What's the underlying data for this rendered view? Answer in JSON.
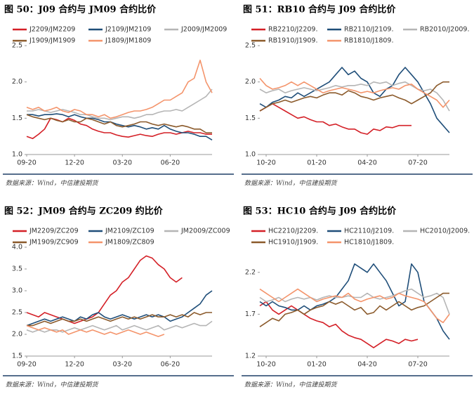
{
  "chart_data": [
    {
      "type": "line",
      "title": "图 50：J09 合约与 JM09 合约比价",
      "source": "数据来源：Wind，中信建投期货",
      "xlim": [
        0,
        31
      ],
      "xticks": [
        {
          "value": 0,
          "label": "09-20"
        },
        {
          "value": 8,
          "label": "12-20"
        },
        {
          "value": 16,
          "label": "03-20"
        },
        {
          "value": 24,
          "label": "06-20"
        }
      ],
      "ylim": [
        1,
        2.5
      ],
      "yticks": [
        {
          "value": 1,
          "label": "1.0"
        },
        1.5,
        {
          "value": 2,
          "label": "2.0"
        },
        2.5
      ],
      "series": [
        {
          "name": "J2209/JM2209",
          "color": "#d42027",
          "values": [
            1.25,
            1.22,
            1.28,
            1.35,
            1.5,
            1.48,
            1.45,
            1.5,
            1.47,
            1.42,
            1.4,
            1.35,
            1.32,
            1.3,
            1.3,
            1.27,
            1.25,
            1.24,
            1.26,
            1.28,
            1.26,
            1.25,
            1.28,
            1.3,
            1.3,
            1.28,
            1.3,
            1.32,
            1.3,
            1.3,
            1.28,
            1.28
          ]
        },
        {
          "name": "J2109/JM2109",
          "color": "#1f4e79",
          "values": [
            1.55,
            1.55,
            1.53,
            1.55,
            1.55,
            1.56,
            1.55,
            1.52,
            1.55,
            1.52,
            1.5,
            1.5,
            1.48,
            1.45,
            1.45,
            1.42,
            1.4,
            1.38,
            1.4,
            1.38,
            1.35,
            1.37,
            1.35,
            1.4,
            1.35,
            1.32,
            1.3,
            1.3,
            1.28,
            1.25,
            1.25,
            1.2
          ]
        },
        {
          "name": "J2009/JM2009",
          "color": "#b5b5b5",
          "values": [
            1.6,
            1.6,
            1.62,
            1.6,
            1.58,
            1.6,
            1.62,
            1.6,
            1.58,
            1.55,
            1.55,
            1.52,
            1.5,
            1.5,
            1.48,
            1.5,
            1.52,
            1.52,
            1.5,
            1.52,
            1.55,
            1.55,
            1.58,
            1.6,
            1.6,
            1.62,
            1.6,
            1.65,
            1.7,
            1.75,
            1.8,
            1.9
          ]
        },
        {
          "name": "J1909/JM1909",
          "color": "#8b5a2b",
          "values": [
            1.55,
            1.52,
            1.5,
            1.48,
            1.5,
            1.47,
            1.45,
            1.48,
            1.45,
            1.45,
            1.5,
            1.48,
            1.45,
            1.42,
            1.45,
            1.4,
            1.38,
            1.4,
            1.42,
            1.45,
            1.45,
            1.42,
            1.4,
            1.42,
            1.4,
            1.38,
            1.4,
            1.38,
            1.35,
            1.35,
            1.3,
            1.3
          ]
        },
        {
          "name": "J1809/JM1809",
          "color": "#f4946b",
          "values": [
            1.65,
            1.62,
            1.65,
            1.6,
            1.62,
            1.65,
            1.6,
            1.58,
            1.62,
            1.6,
            1.55,
            1.55,
            1.52,
            1.55,
            1.5,
            1.52,
            1.55,
            1.58,
            1.6,
            1.6,
            1.62,
            1.65,
            1.7,
            1.75,
            1.75,
            1.8,
            1.85,
            2.0,
            2.05,
            2.3,
            2.0,
            1.85
          ]
        }
      ]
    },
    {
      "type": "line",
      "title": "图 51：RB10 合约与 J09 合约比价",
      "source": "数据来源：Wind，中信建投期货",
      "xlim": [
        0,
        30
      ],
      "xticks": [
        {
          "value": 1,
          "label": "10-20"
        },
        {
          "value": 9,
          "label": "01-20"
        },
        {
          "value": 17,
          "label": "04-20"
        },
        {
          "value": 25,
          "label": "07-20"
        }
      ],
      "ylim": [
        1,
        2.5
      ],
      "yticks": [
        {
          "value": 1,
          "label": "1.0"
        },
        1.5,
        {
          "value": 2,
          "label": "2.0"
        },
        2.5
      ],
      "series": [
        {
          "name": "RB2210/J2209.",
          "color": "#d42027",
          "values": [
            1.6,
            1.65,
            1.7,
            1.65,
            1.6,
            1.55,
            1.5,
            1.52,
            1.48,
            1.45,
            1.45,
            1.4,
            1.42,
            1.38,
            1.35,
            1.35,
            1.3,
            1.28,
            1.35,
            1.33,
            1.38,
            1.37,
            1.4,
            1.4,
            1.4,
            null,
            null,
            null,
            null,
            null,
            null
          ]
        },
        {
          "name": "RB2110/J2109.",
          "color": "#1f4e79",
          "values": [
            1.7,
            1.65,
            1.72,
            1.75,
            1.8,
            1.78,
            1.85,
            1.8,
            1.85,
            1.9,
            1.95,
            2.0,
            2.1,
            2.2,
            2.1,
            2.15,
            2.05,
            2.0,
            1.85,
            1.8,
            1.9,
            1.95,
            2.1,
            2.2,
            2.1,
            2.0,
            1.85,
            1.7,
            1.5,
            1.4,
            1.3
          ]
        },
        {
          "name": "RB2010/J2009.",
          "color": "#b5b5b5",
          "values": [
            1.9,
            1.85,
            1.88,
            1.9,
            1.85,
            1.88,
            1.9,
            1.92,
            1.9,
            1.88,
            1.9,
            1.92,
            1.95,
            1.93,
            1.95,
            1.95,
            1.97,
            1.95,
            2.0,
            1.98,
            2.0,
            1.95,
            1.98,
            2.0,
            1.95,
            1.9,
            1.88,
            1.9,
            1.85,
            1.75,
            1.6
          ]
        },
        {
          "name": "RB1910/J1909.",
          "color": "#8b5a2b",
          "values": [
            1.6,
            1.65,
            1.7,
            1.72,
            1.75,
            1.72,
            1.75,
            1.78,
            1.8,
            1.78,
            1.82,
            1.85,
            1.85,
            1.82,
            1.88,
            1.85,
            1.8,
            1.78,
            1.75,
            1.78,
            1.8,
            1.82,
            1.78,
            1.75,
            1.7,
            1.75,
            1.8,
            1.85,
            1.95,
            2.0,
            2.0
          ]
        },
        {
          "name": "RB1810/J1809.",
          "color": "#f4946b",
          "values": [
            2.05,
            1.95,
            1.9,
            1.92,
            1.95,
            2.0,
            1.95,
            2.0,
            1.95,
            1.9,
            1.85,
            1.88,
            1.9,
            1.92,
            1.9,
            1.88,
            1.85,
            1.87,
            1.85,
            1.88,
            1.9,
            1.92,
            1.9,
            1.95,
            1.97,
            1.9,
            1.85,
            1.8,
            1.75,
            1.65,
            1.75
          ]
        }
      ]
    },
    {
      "type": "line",
      "title": "图 52：JM09 合约与 ZC209 约比价",
      "source": "数据来源：Wind，中信建投期货",
      "xlim": [
        0,
        31
      ],
      "xticks": [
        {
          "value": 0,
          "label": "09-20"
        },
        {
          "value": 8,
          "label": "12-20"
        },
        {
          "value": 16,
          "label": "03-20"
        },
        {
          "value": 24,
          "label": "06-20"
        }
      ],
      "ylim": [
        1.5,
        4
      ],
      "yticks": [
        1.5,
        {
          "value": 2,
          "label": "2.0"
        },
        2.5,
        {
          "value": 3,
          "label": "3.0"
        },
        3.5,
        {
          "value": 4,
          "label": "4.0"
        }
      ],
      "series": [
        {
          "name": "JM2209/ZC209",
          "color": "#d42027",
          "values": [
            2.5,
            2.45,
            2.4,
            2.5,
            2.45,
            2.4,
            2.35,
            2.3,
            2.25,
            2.3,
            2.35,
            2.4,
            2.5,
            2.7,
            2.9,
            3.0,
            3.2,
            3.3,
            3.5,
            3.7,
            3.8,
            3.75,
            3.6,
            3.5,
            3.3,
            3.2,
            3.3,
            null,
            null,
            null,
            null,
            null
          ]
        },
        {
          "name": "JM2109/ZC109",
          "color": "#1f4e79",
          "values": [
            2.2,
            2.25,
            2.3,
            2.35,
            2.3,
            2.35,
            2.4,
            2.35,
            2.3,
            2.4,
            2.35,
            2.45,
            2.5,
            2.4,
            2.35,
            2.4,
            2.45,
            2.4,
            2.35,
            2.4,
            2.45,
            2.4,
            2.45,
            2.4,
            2.3,
            2.35,
            2.4,
            2.5,
            2.6,
            2.7,
            2.9,
            3.0
          ]
        },
        {
          "name": "JM2009/ZC009",
          "color": "#b5b5b5",
          "values": [
            2.1,
            2.05,
            2.1,
            2.05,
            2.1,
            2.1,
            2.05,
            2.1,
            2.15,
            2.1,
            2.15,
            2.2,
            2.15,
            2.1,
            2.15,
            2.2,
            2.1,
            2.15,
            2.2,
            2.15,
            2.1,
            2.15,
            2.2,
            2.1,
            2.15,
            2.2,
            2.15,
            2.2,
            2.25,
            2.2,
            2.2,
            2.3
          ]
        },
        {
          "name": "JM1909/ZC909",
          "color": "#8b5a2b",
          "values": [
            2.2,
            2.2,
            2.25,
            2.3,
            2.25,
            2.3,
            2.35,
            2.3,
            2.3,
            2.35,
            2.3,
            2.35,
            2.4,
            2.35,
            2.3,
            2.35,
            2.4,
            2.35,
            2.4,
            2.35,
            2.4,
            2.45,
            2.4,
            2.4,
            2.45,
            2.4,
            2.45,
            2.4,
            2.5,
            2.45,
            2.5,
            2.5
          ]
        },
        {
          "name": "JM1809/ZC809",
          "color": "#f4946b",
          "values": [
            2.2,
            2.15,
            2.1,
            2.15,
            2.1,
            2.05,
            2.1,
            2.0,
            2.05,
            2.1,
            2.05,
            2.1,
            2.05,
            2.0,
            2.05,
            2.0,
            2.05,
            2.1,
            2.05,
            2.0,
            2.05,
            2.0,
            1.95,
            2.0,
            null,
            null,
            null,
            null,
            null,
            null,
            null,
            null
          ]
        }
      ]
    },
    {
      "type": "line",
      "title": "图 53：HC10 合约与 J09 合约比价",
      "source": "数据来源：Wind，中信建投期货",
      "xlim": [
        0,
        30
      ],
      "xticks": [
        {
          "value": 1,
          "label": "10-20"
        },
        {
          "value": 9,
          "label": "01-20"
        },
        {
          "value": 17,
          "label": "04-20"
        },
        {
          "value": 25,
          "label": "07-20"
        }
      ],
      "ylim": [
        1.2,
        2.5
      ],
      "yticks": [
        1.2,
        1.7,
        2.2
      ],
      "series": [
        {
          "name": "HC2210/J2209.",
          "color": "#d42027",
          "values": [
            1.8,
            1.85,
            1.75,
            1.7,
            1.75,
            1.8,
            1.75,
            1.7,
            1.65,
            1.62,
            1.6,
            1.55,
            1.58,
            1.5,
            1.45,
            1.42,
            1.4,
            1.35,
            1.3,
            1.35,
            1.4,
            1.38,
            1.35,
            1.4,
            1.38,
            1.4,
            null,
            null,
            null,
            null,
            null
          ]
        },
        {
          "name": "HC2110/J2109.",
          "color": "#1f4e79",
          "values": [
            1.85,
            1.8,
            1.85,
            1.8,
            1.78,
            1.75,
            1.75,
            1.8,
            1.75,
            1.8,
            1.82,
            1.85,
            1.9,
            2.0,
            2.1,
            2.3,
            2.25,
            2.2,
            2.3,
            2.2,
            2.1,
            1.95,
            1.8,
            1.85,
            2.3,
            2.2,
            1.85,
            1.75,
            1.65,
            1.5,
            1.4
          ]
        },
        {
          "name": "HC2010/J2009.",
          "color": "#b5b5b5",
          "values": [
            1.9,
            1.85,
            1.87,
            1.9,
            1.85,
            1.88,
            1.9,
            1.88,
            1.9,
            1.87,
            1.9,
            1.92,
            1.9,
            1.9,
            1.92,
            1.9,
            1.9,
            1.95,
            1.9,
            1.88,
            1.9,
            1.92,
            1.95,
            1.98,
            2.0,
            1.95,
            1.9,
            1.92,
            1.95,
            1.9,
            1.7
          ]
        },
        {
          "name": "HC1910/J1909.",
          "color": "#8b5a2b",
          "values": [
            1.55,
            1.6,
            1.65,
            1.62,
            1.7,
            1.72,
            1.75,
            1.7,
            1.75,
            1.78,
            1.8,
            1.85,
            1.82,
            1.85,
            1.8,
            1.75,
            1.78,
            1.7,
            1.72,
            1.8,
            1.75,
            1.8,
            1.85,
            1.8,
            1.75,
            1.78,
            1.8,
            1.85,
            1.9,
            1.95,
            1.95
          ]
        },
        {
          "name": "HC1810/J1809.",
          "color": "#f4946b",
          "values": [
            2.0,
            1.95,
            1.9,
            1.85,
            1.9,
            1.95,
            2.0,
            1.95,
            1.9,
            1.85,
            1.88,
            1.9,
            1.92,
            1.9,
            1.95,
            1.88,
            1.85,
            1.88,
            1.9,
            1.92,
            1.88,
            1.9,
            1.95,
            1.92,
            1.9,
            1.88,
            1.85,
            1.75,
            1.65,
            1.6,
            1.7
          ]
        }
      ]
    }
  ]
}
